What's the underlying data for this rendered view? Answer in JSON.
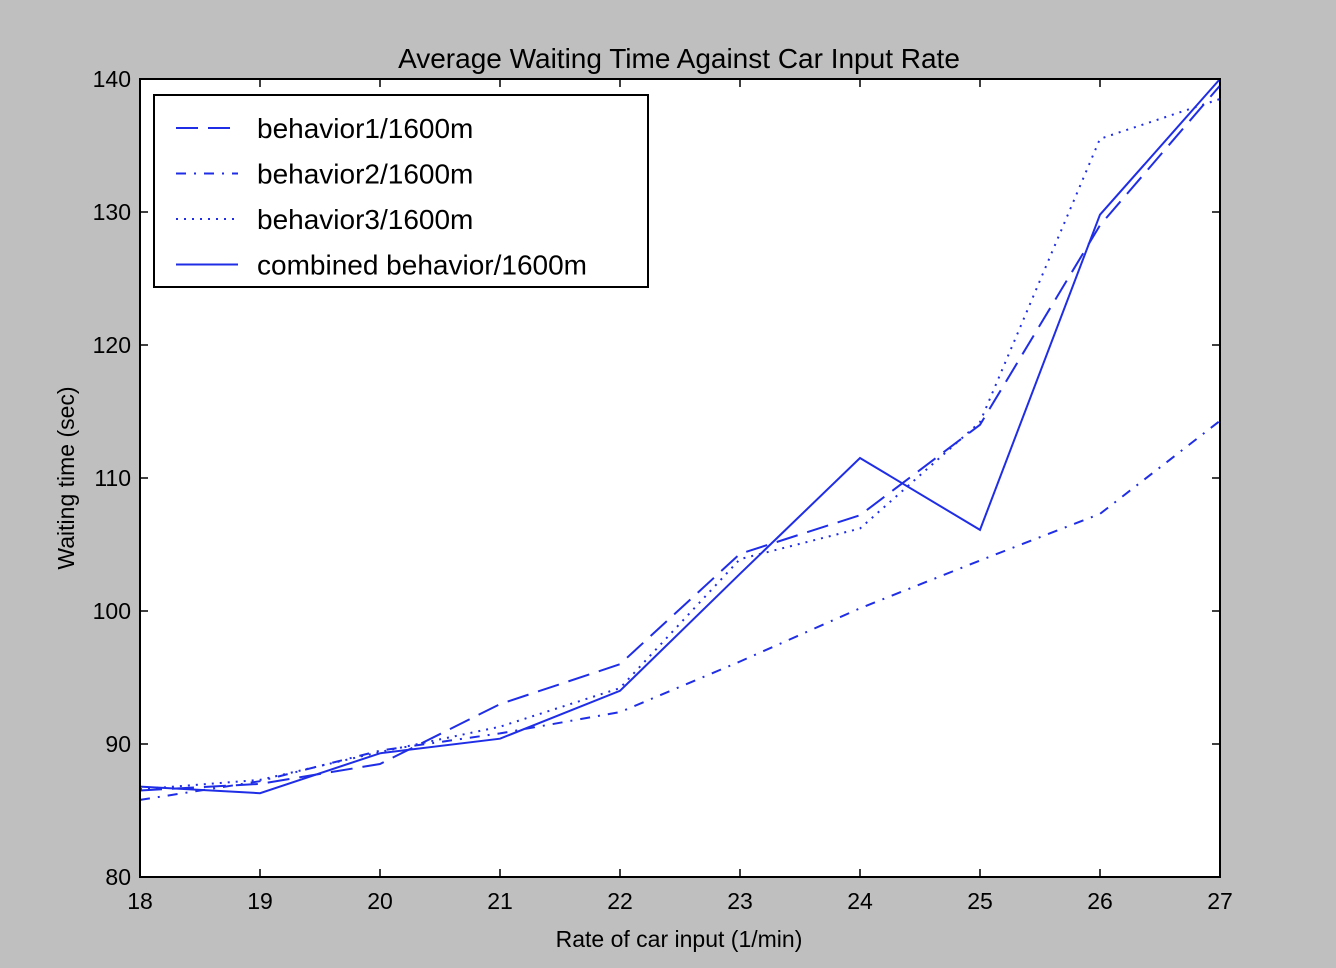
{
  "chart_data": {
    "type": "line",
    "title": "Average Waiting Time Against Car Input Rate",
    "xlabel": "Rate of car input (1/min)",
    "ylabel": "Waiting time (sec)",
    "x": [
      18,
      19,
      20,
      21,
      22,
      23,
      24,
      25,
      26,
      27
    ],
    "xlim": [
      18,
      27
    ],
    "ylim": [
      80,
      140
    ],
    "xticks": [
      "18",
      "19",
      "20",
      "21",
      "22",
      "23",
      "24",
      "25",
      "26",
      "27"
    ],
    "yticks": [
      "80",
      "90",
      "100",
      "110",
      "120",
      "130",
      "140"
    ],
    "grid": false,
    "legend_position": "top-left",
    "series": [
      {
        "name": "behavior1/1600m",
        "style": "dashed",
        "color": "#1f2ee6",
        "values": [
          86.5,
          87.0,
          88.5,
          93.0,
          96.0,
          104.3,
          107.2,
          114.0,
          129.0,
          139.5
        ]
      },
      {
        "name": "behavior2/1600m",
        "style": "dashdot",
        "color": "#1f2ee6",
        "values": [
          85.8,
          87.2,
          89.5,
          90.8,
          92.4,
          96.2,
          100.2,
          103.8,
          107.3,
          114.3
        ]
      },
      {
        "name": "behavior3/1600m",
        "style": "dotted",
        "color": "#1f2ee6",
        "values": [
          86.6,
          87.3,
          89.4,
          91.3,
          94.2,
          103.9,
          106.2,
          114.2,
          135.5,
          138.5
        ]
      },
      {
        "name": "combined behavior/1600m",
        "style": "solid",
        "color": "#1f2ee6",
        "values": [
          86.8,
          86.3,
          89.3,
          90.4,
          94.0,
          102.8,
          111.5,
          106.1,
          129.8,
          140.0
        ]
      }
    ]
  }
}
